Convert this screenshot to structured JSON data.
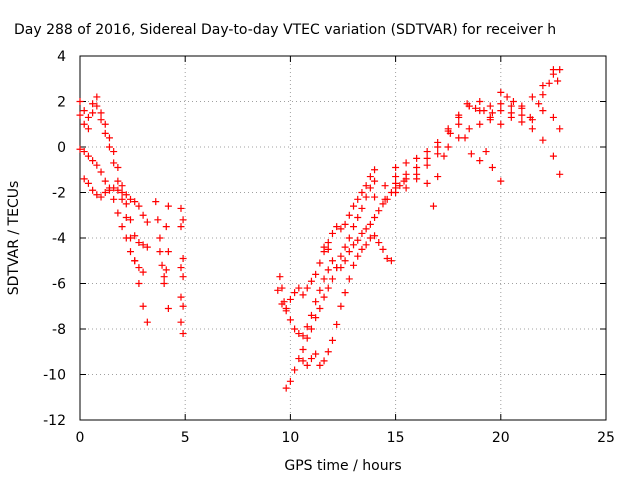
{
  "chart_data": {
    "type": "scatter",
    "title": "Day 288 of 2016, Sidereal Day-to-day VTEC variation (SDTVAR) for receiver h",
    "xlabel": "GPS time / hours",
    "ylabel": "SDTVAR / TECUs",
    "xlim": [
      0,
      25
    ],
    "ylim": [
      -12,
      4
    ],
    "x_ticks": [
      0,
      5,
      10,
      15,
      20,
      25
    ],
    "y_ticks": [
      -12,
      -10,
      -8,
      -6,
      -4,
      -2,
      0,
      2,
      4
    ],
    "x_tick_labels": [
      "0",
      "5",
      "10",
      "15",
      "20",
      "25"
    ],
    "y_tick_labels": [
      "-12",
      "-10",
      "-8",
      "-6",
      "-4",
      "-2",
      "0",
      "2",
      "4"
    ],
    "grid": true,
    "legend": "none",
    "marker": "+",
    "color": "#ff0000",
    "series": [
      {
        "points": [
          [
            0.0,
            1.4
          ],
          [
            0.2,
            1.6
          ],
          [
            0.4,
            1.3
          ],
          [
            0.6,
            1.5
          ],
          [
            0.8,
            1.8
          ],
          [
            1.0,
            1.2
          ],
          [
            1.2,
            0.6
          ],
          [
            1.4,
            0.0
          ],
          [
            1.6,
            -0.7
          ],
          [
            1.8,
            -1.5
          ],
          [
            2.0,
            -2.3
          ],
          [
            2.2,
            -3.1
          ],
          [
            2.4,
            -4.0
          ],
          [
            2.6,
            -5.0
          ],
          [
            2.8,
            -6.0
          ],
          [
            3.0,
            -7.0
          ],
          [
            3.2,
            -7.7
          ]
        ]
      },
      {
        "points": [
          [
            0.0,
            2.0
          ],
          [
            0.2,
            1.0
          ],
          [
            0.4,
            0.8
          ],
          [
            0.6,
            1.9
          ],
          [
            0.8,
            2.2
          ],
          [
            1.0,
            1.5
          ],
          [
            1.2,
            1.0
          ],
          [
            1.4,
            0.4
          ],
          [
            1.6,
            -0.2
          ],
          [
            1.8,
            -0.9
          ],
          [
            2.0,
            -1.7
          ],
          [
            2.2,
            -2.5
          ],
          [
            2.4,
            -3.2
          ],
          [
            2.6,
            -3.9
          ],
          [
            2.8,
            -4.2
          ],
          [
            3.0,
            -4.3
          ],
          [
            3.2,
            -4.4
          ]
        ]
      },
      {
        "points": [
          [
            0.0,
            -0.1
          ],
          [
            0.2,
            -0.2
          ],
          [
            0.4,
            -0.4
          ],
          [
            0.6,
            -0.6
          ],
          [
            0.8,
            -0.8
          ],
          [
            1.0,
            -1.1
          ],
          [
            1.2,
            -1.5
          ],
          [
            1.4,
            -1.8
          ],
          [
            1.6,
            -2.3
          ],
          [
            1.8,
            -2.9
          ],
          [
            2.0,
            -3.5
          ],
          [
            2.2,
            -4.0
          ],
          [
            2.4,
            -4.6
          ],
          [
            2.6,
            -5.0
          ],
          [
            2.8,
            -5.3
          ],
          [
            3.0,
            -5.5
          ]
        ]
      },
      {
        "points": [
          [
            0.2,
            -1.4
          ],
          [
            0.4,
            -1.6
          ],
          [
            0.6,
            -1.9
          ],
          [
            0.8,
            -2.1
          ],
          [
            1.0,
            -2.2
          ],
          [
            1.2,
            -2.0
          ],
          [
            1.4,
            -1.9
          ],
          [
            1.6,
            -1.8
          ],
          [
            1.8,
            -1.9
          ],
          [
            2.0,
            -2.0
          ],
          [
            2.2,
            -2.1
          ],
          [
            2.4,
            -2.3
          ],
          [
            2.6,
            -2.4
          ],
          [
            2.8,
            -2.6
          ],
          [
            3.0,
            -3.0
          ],
          [
            3.2,
            -3.3
          ]
        ]
      },
      {
        "points": [
          [
            3.6,
            -2.4
          ],
          [
            3.7,
            -3.2
          ],
          [
            3.8,
            -4.0
          ],
          [
            3.8,
            -4.6
          ],
          [
            3.9,
            -5.2
          ],
          [
            4.0,
            -5.7
          ],
          [
            4.0,
            -6.0
          ],
          [
            4.1,
            -5.4
          ],
          [
            4.2,
            -4.6
          ],
          [
            4.1,
            -3.5
          ],
          [
            4.2,
            -2.6
          ],
          [
            4.2,
            -7.1
          ]
        ]
      },
      {
        "points": [
          [
            4.8,
            -2.7
          ],
          [
            4.9,
            -3.2
          ],
          [
            4.8,
            -3.5
          ],
          [
            4.9,
            -4.9
          ],
          [
            4.8,
            -5.3
          ],
          [
            4.9,
            -5.7
          ],
          [
            4.8,
            -6.6
          ],
          [
            4.9,
            -7.0
          ],
          [
            4.8,
            -7.7
          ],
          [
            4.9,
            -8.2
          ]
        ]
      },
      {
        "points": [
          [
            9.5,
            -5.7
          ],
          [
            9.6,
            -6.2
          ],
          [
            9.7,
            -6.8
          ],
          [
            9.8,
            -7.1
          ],
          [
            10.0,
            -6.7
          ],
          [
            10.2,
            -6.4
          ],
          [
            10.4,
            -6.2
          ],
          [
            10.6,
            -6.5
          ],
          [
            10.8,
            -6.2
          ],
          [
            11.0,
            -5.9
          ],
          [
            11.2,
            -5.6
          ],
          [
            11.4,
            -5.1
          ],
          [
            11.6,
            -4.6
          ],
          [
            11.8,
            -4.2
          ],
          [
            12.0,
            -3.8
          ],
          [
            12.2,
            -3.5
          ],
          [
            12.4,
            -3.6
          ],
          [
            12.6,
            -3.4
          ],
          [
            12.8,
            -3.0
          ],
          [
            13.0,
            -2.6
          ],
          [
            13.2,
            -2.3
          ],
          [
            13.4,
            -2.0
          ],
          [
            13.6,
            -1.7
          ],
          [
            13.8,
            -1.3
          ],
          [
            14.0,
            -1.0
          ]
        ]
      },
      {
        "points": [
          [
            9.8,
            -10.6
          ],
          [
            10.0,
            -10.3
          ],
          [
            10.2,
            -9.8
          ],
          [
            10.4,
            -9.3
          ],
          [
            10.6,
            -8.9
          ],
          [
            10.8,
            -8.4
          ],
          [
            11.0,
            -8.0
          ],
          [
            11.2,
            -7.5
          ],
          [
            11.4,
            -7.1
          ],
          [
            11.6,
            -6.6
          ],
          [
            11.8,
            -6.2
          ],
          [
            12.0,
            -5.8
          ],
          [
            12.2,
            -5.3
          ],
          [
            12.4,
            -4.8
          ],
          [
            12.6,
            -4.4
          ],
          [
            12.8,
            -4.0
          ],
          [
            13.0,
            -3.5
          ],
          [
            13.2,
            -3.1
          ],
          [
            13.4,
            -2.7
          ],
          [
            13.6,
            -2.2
          ],
          [
            13.8,
            -1.8
          ],
          [
            14.0,
            -1.5
          ]
        ]
      },
      {
        "points": [
          [
            9.4,
            -6.3
          ],
          [
            9.6,
            -6.9
          ],
          [
            9.8,
            -7.2
          ],
          [
            10.0,
            -7.6
          ],
          [
            10.2,
            -8.0
          ],
          [
            10.4,
            -8.2
          ],
          [
            10.6,
            -8.3
          ],
          [
            10.8,
            -7.9
          ],
          [
            11.0,
            -7.4
          ],
          [
            11.2,
            -6.8
          ],
          [
            11.4,
            -6.3
          ],
          [
            11.6,
            -5.8
          ],
          [
            11.8,
            -5.4
          ]
        ]
      },
      {
        "points": [
          [
            10.6,
            -9.4
          ],
          [
            10.8,
            -9.6
          ],
          [
            11.0,
            -9.3
          ],
          [
            11.2,
            -9.1
          ],
          [
            11.4,
            -9.6
          ],
          [
            11.6,
            -9.4
          ],
          [
            11.8,
            -9.0
          ],
          [
            12.0,
            -8.5
          ],
          [
            12.2,
            -7.8
          ],
          [
            12.4,
            -7.0
          ],
          [
            12.6,
            -6.4
          ],
          [
            12.8,
            -5.8
          ],
          [
            13.0,
            -5.2
          ],
          [
            13.2,
            -4.8
          ],
          [
            13.4,
            -4.5
          ],
          [
            13.6,
            -4.3
          ],
          [
            13.8,
            -4.0
          ],
          [
            14.0,
            -3.9
          ],
          [
            14.2,
            -4.2
          ],
          [
            14.4,
            -4.5
          ],
          [
            14.6,
            -4.9
          ],
          [
            14.8,
            -5.0
          ]
        ]
      },
      {
        "points": [
          [
            11.6,
            -4.4
          ],
          [
            11.8,
            -4.5
          ],
          [
            12.0,
            -5.0
          ],
          [
            12.2,
            -5.3
          ],
          [
            12.4,
            -5.3
          ],
          [
            12.6,
            -5.0
          ],
          [
            12.8,
            -4.6
          ],
          [
            13.0,
            -4.3
          ],
          [
            13.2,
            -4.1
          ],
          [
            13.4,
            -3.8
          ],
          [
            13.6,
            -3.6
          ],
          [
            13.8,
            -3.4
          ],
          [
            14.0,
            -3.1
          ],
          [
            14.2,
            -2.8
          ],
          [
            14.4,
            -2.5
          ],
          [
            14.6,
            -2.3
          ],
          [
            14.8,
            -2.0
          ],
          [
            15.0,
            -1.8
          ],
          [
            15.2,
            -1.7
          ],
          [
            15.4,
            -1.5
          ]
        ]
      },
      {
        "points": [
          [
            14.0,
            -2.2
          ],
          [
            14.5,
            -1.7
          ],
          [
            15.0,
            -1.3
          ],
          [
            15.5,
            -1.2
          ],
          [
            16.0,
            -0.9
          ],
          [
            16.5,
            -0.5
          ],
          [
            17.0,
            -0.3
          ],
          [
            17.5,
            0.0
          ],
          [
            18.0,
            0.4
          ],
          [
            18.5,
            0.8
          ],
          [
            19.0,
            1.0
          ],
          [
            19.5,
            1.3
          ],
          [
            20.0,
            1.6
          ],
          [
            20.5,
            1.5
          ],
          [
            21.0,
            1.1
          ],
          [
            21.5,
            0.8
          ],
          [
            22.0,
            0.3
          ],
          [
            22.5,
            -0.4
          ],
          [
            22.8,
            -1.2
          ]
        ]
      },
      {
        "points": [
          [
            14.5,
            -2.3
          ],
          [
            15.0,
            -2.0
          ],
          [
            15.5,
            -1.8
          ],
          [
            16.0,
            -1.4
          ],
          [
            16.5,
            -0.8
          ],
          [
            17.0,
            0.0
          ],
          [
            17.5,
            0.8
          ],
          [
            18.0,
            1.4
          ],
          [
            18.5,
            1.8
          ],
          [
            19.0,
            1.6
          ],
          [
            19.5,
            1.2
          ],
          [
            20.0,
            1.0
          ],
          [
            20.5,
            1.3
          ],
          [
            21.0,
            1.8
          ],
          [
            21.5,
            2.2
          ],
          [
            22.0,
            2.7
          ],
          [
            22.5,
            3.2
          ],
          [
            22.8,
            3.4
          ]
        ]
      },
      {
        "points": [
          [
            15.0,
            -0.9
          ],
          [
            15.5,
            -0.7
          ],
          [
            16.0,
            -0.5
          ],
          [
            16.5,
            -0.2
          ],
          [
            17.0,
            0.2
          ],
          [
            17.5,
            0.7
          ],
          [
            18.0,
            1.3
          ],
          [
            18.5,
            1.8
          ],
          [
            19.0,
            2.0
          ],
          [
            19.5,
            1.8
          ],
          [
            20.0,
            2.4
          ],
          [
            20.5,
            1.8
          ],
          [
            21.0,
            1.4
          ],
          [
            21.5,
            1.2
          ],
          [
            22.0,
            1.6
          ],
          [
            22.5,
            1.3
          ],
          [
            22.8,
            0.8
          ]
        ]
      },
      {
        "points": [
          [
            15.0,
            -1.6
          ],
          [
            15.5,
            -1.4
          ],
          [
            16.0,
            -1.2
          ],
          [
            16.5,
            -1.6
          ],
          [
            16.8,
            -2.6
          ],
          [
            17.0,
            -1.3
          ],
          [
            17.3,
            -0.4
          ],
          [
            17.6,
            0.6
          ],
          [
            18.0,
            1.0
          ],
          [
            18.3,
            0.4
          ],
          [
            18.6,
            -0.3
          ],
          [
            19.0,
            -0.6
          ],
          [
            19.3,
            -0.2
          ],
          [
            19.6,
            -0.9
          ],
          [
            20.0,
            -1.5
          ]
        ]
      },
      {
        "points": [
          [
            18.4,
            1.9
          ],
          [
            18.8,
            1.7
          ],
          [
            19.2,
            1.6
          ],
          [
            19.6,
            1.5
          ],
          [
            20.0,
            1.9
          ],
          [
            20.3,
            2.2
          ],
          [
            20.6,
            2.0
          ],
          [
            21.0,
            1.7
          ],
          [
            21.4,
            1.3
          ],
          [
            21.8,
            1.9
          ],
          [
            22.0,
            2.3
          ],
          [
            22.3,
            2.8
          ],
          [
            22.5,
            3.4
          ],
          [
            22.7,
            2.9
          ]
        ]
      }
    ]
  }
}
